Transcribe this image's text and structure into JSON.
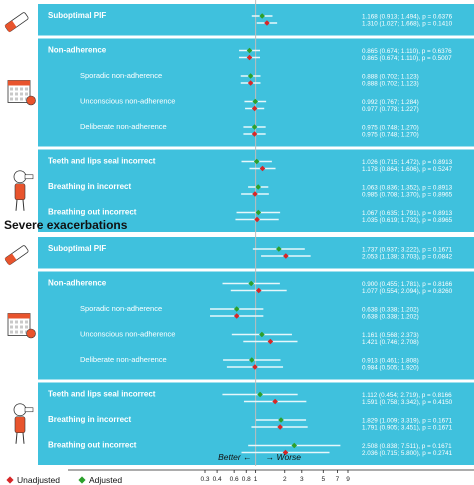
{
  "chart_data": {
    "type": "forest",
    "x_scale": "log",
    "reference_line": 1,
    "xlim": [
      0.3,
      9
    ],
    "x_ticks": [
      {
        "value": 0.3,
        "label": "0.3"
      },
      {
        "value": 0.4,
        "label": "0.4"
      },
      {
        "value": 0.6,
        "label": "0.6"
      },
      {
        "value": 0.8,
        "label": "0.8"
      },
      {
        "value": 1,
        "label": "1"
      },
      {
        "value": 2,
        "label": "2"
      },
      {
        "value": 3,
        "label": "3"
      },
      {
        "value": 5,
        "label": "5"
      },
      {
        "value": 7,
        "label": "7"
      },
      {
        "value": 9,
        "label": "9"
      }
    ],
    "direction_labels": {
      "left": "Better ←",
      "right": "→ Worse"
    },
    "legend": [
      {
        "name": "Unadjusted",
        "color": "#d62728"
      },
      {
        "name": "Adjusted",
        "color": "#2ca02c"
      }
    ],
    "panels": [
      {
        "title": "",
        "groups": [
          {
            "rows": [
              {
                "label": "Suboptimal PIF",
                "bold": true,
                "estimates": [
                  {
                    "series": "Adjusted",
                    "or": 1.168,
                    "low": 0.913,
                    "high": 1.494,
                    "text": "1.168 (0.913; 1.494), p = 0.6376"
                  },
                  {
                    "series": "Unadjusted",
                    "or": 1.31,
                    "low": 1.027,
                    "high": 1.668,
                    "text": "1.310 (1.027; 1.668), p = 0.1410"
                  }
                ]
              }
            ]
          },
          {
            "rows": [
              {
                "label": "Non-adherence",
                "bold": true,
                "estimates": [
                  {
                    "series": "Adjusted",
                    "or": 0.865,
                    "low": 0.674,
                    "high": 1.11,
                    "text": "0.865 (0.674; 1.110), p = 0.6376"
                  },
                  {
                    "series": "Unadjusted",
                    "or": 0.865,
                    "low": 0.674,
                    "high": 1.11,
                    "text": "0.865 (0.674; 1.110), p = 0.5007"
                  }
                ]
              },
              {
                "label": "Sporadic non-adherence",
                "bold": false,
                "estimates": [
                  {
                    "series": "Adjusted",
                    "or": 0.888,
                    "low": 0.702,
                    "high": 1.123,
                    "text": "0.888 (0.702; 1.123)"
                  },
                  {
                    "series": "Unadjusted",
                    "or": 0.888,
                    "low": 0.702,
                    "high": 1.123,
                    "text": "0.888 (0.702; 1.123)"
                  }
                ]
              },
              {
                "label": "Unconscious non-adherence",
                "bold": false,
                "estimates": [
                  {
                    "series": "Adjusted",
                    "or": 0.992,
                    "low": 0.767,
                    "high": 1.284,
                    "text": "0.992 (0.767; 1.284)"
                  },
                  {
                    "series": "Unadjusted",
                    "or": 0.977,
                    "or_hidden": false,
                    "low": 0.778,
                    "high": 1.227,
                    "text": "0.977 (0.778; 1.227)"
                  }
                ]
              },
              {
                "label": "Deliberate non-adherence",
                "bold": false,
                "estimates": [
                  {
                    "series": "Adjusted",
                    "or": 0.975,
                    "low": 0.748,
                    "high": 1.27,
                    "text": "0.975 (0.748; 1.270)"
                  },
                  {
                    "series": "Unadjusted",
                    "or": 0.975,
                    "low": 0.748,
                    "high": 1.27,
                    "text": "0.975 (0.748; 1.270)"
                  }
                ]
              }
            ]
          },
          {
            "rows": [
              {
                "label": "Teeth and lips seal incorrect",
                "bold": true,
                "estimates": [
                  {
                    "series": "Adjusted",
                    "or": 1.026,
                    "low": 0.715,
                    "high": 1.472,
                    "text": "1.026 (0.715; 1.472), p = 0.8913"
                  },
                  {
                    "series": "Unadjusted",
                    "or": 1.178,
                    "low": 0.864,
                    "high": 1.606,
                    "text": "1.178 (0.864; 1.606), p = 0.5247"
                  }
                ]
              },
              {
                "label": "Breathing in incorrect",
                "bold": true,
                "estimates": [
                  {
                    "series": "Adjusted",
                    "or": 1.063,
                    "low": 0.836,
                    "high": 1.352,
                    "text": "1.063 (0.836; 1.352), p = 0.8913"
                  },
                  {
                    "series": "Unadjusted",
                    "or": 0.985,
                    "low": 0.708,
                    "high": 1.37,
                    "text": "0.985 (0.708; 1.370), p = 0.8965"
                  }
                ]
              },
              {
                "label": "Breathing out incorrect",
                "bold": true,
                "estimates": [
                  {
                    "series": "Adjusted",
                    "or": 1.067,
                    "low": 0.635,
                    "high": 1.791,
                    "text": "1.067 (0.635; 1.791), p = 0.8913"
                  },
                  {
                    "series": "Unadjusted",
                    "or": 1.035,
                    "low": 0.619,
                    "high": 1.732,
                    "text": "1.035 (0.619; 1.732), p = 0.8965"
                  }
                ]
              }
            ]
          }
        ]
      },
      {
        "title": "Severe exacerbations",
        "groups": [
          {
            "rows": [
              {
                "label": "Suboptimal PIF",
                "bold": true,
                "estimates": [
                  {
                    "series": "Adjusted",
                    "or": 1.737,
                    "low": 0.937,
                    "high": 3.222,
                    "text": "1.737 (0.937; 3.222), p = 0.1671"
                  },
                  {
                    "series": "Unadjusted",
                    "or": 2.053,
                    "low": 1.138,
                    "high": 3.703,
                    "text": "2.053 (1.138; 3.703), p = 0.0842"
                  }
                ]
              }
            ]
          },
          {
            "rows": [
              {
                "label": "Non-adherence",
                "bold": true,
                "estimates": [
                  {
                    "series": "Adjusted",
                    "or": 0.9,
                    "low": 0.455,
                    "high": 1.781,
                    "text": "0.900 (0.455; 1.781), p = 0.8166"
                  },
                  {
                    "series": "Unadjusted",
                    "or": 1.077,
                    "low": 0.554,
                    "high": 2.094,
                    "text": "1.077 (0.554; 2.094), p = 0.8260"
                  }
                ]
              },
              {
                "label": "Sporadic non-adherence",
                "bold": false,
                "estimates": [
                  {
                    "series": "Adjusted",
                    "or": 0.638,
                    "low": 0.338,
                    "high": 1.202,
                    "text": "0.638 (0.338; 1.202)"
                  },
                  {
                    "series": "Unadjusted",
                    "or": 0.638,
                    "low": 0.338,
                    "high": 1.202,
                    "text": "0.638 (0.338; 1.202)"
                  }
                ]
              },
              {
                "label": "Unconscious non-adherence",
                "bold": false,
                "estimates": [
                  {
                    "series": "Adjusted",
                    "or": 1.161,
                    "low": 0.568,
                    "high": 2.373,
                    "text": "1.161 (0.568; 2.373)"
                  },
                  {
                    "series": "Unadjusted",
                    "or": 1.421,
                    "low": 0.746,
                    "high": 2.708,
                    "text": "1.421 (0.746; 2.708)"
                  }
                ]
              },
              {
                "label": "Deliberate non-adherence",
                "bold": false,
                "estimates": [
                  {
                    "series": "Adjusted",
                    "or": 0.913,
                    "low": 0.461,
                    "high": 1.808,
                    "text": "0.913 (0.461; 1.808)"
                  },
                  {
                    "series": "Unadjusted",
                    "or": 0.984,
                    "low": 0.505,
                    "high": 1.92,
                    "text": "0.984 (0.505; 1.920)"
                  }
                ]
              }
            ]
          },
          {
            "rows": [
              {
                "label": "Teeth and lips seal incorrect",
                "bold": true,
                "estimates": [
                  {
                    "series": "Adjusted",
                    "or": 1.112,
                    "low": 0.454,
                    "high": 2.719,
                    "text": "1.112 (0.454; 2.719), p = 0.8166"
                  },
                  {
                    "series": "Unadjusted",
                    "or": 1.591,
                    "low": 0.758,
                    "high": 3.342,
                    "text": "1.591 (0.758; 3.342), p = 0.4150"
                  }
                ]
              },
              {
                "label": "Breathing in incorrect",
                "bold": true,
                "estimates": [
                  {
                    "series": "Adjusted",
                    "or": 1.829,
                    "low": 1.009,
                    "high": 3.319,
                    "text": "1.829 (1.009; 3.319), p = 0.1671"
                  },
                  {
                    "series": "Unadjusted",
                    "or": 1.791,
                    "low": 0.905,
                    "high": 3.451,
                    "text": "1.791 (0.905; 3.451), p = 0.1671"
                  }
                ]
              },
              {
                "label": "Breathing out incorrect",
                "bold": true,
                "estimates": [
                  {
                    "series": "Adjusted",
                    "or": 2.508,
                    "low": 0.838,
                    "high": 7.511,
                    "text": "2.508 (0.838; 7.511), p = 0.1671"
                  },
                  {
                    "series": "Unadjusted",
                    "or": 2.036,
                    "low": 0.715,
                    "high": 5.8,
                    "text": "2.036 (0.715; 5.800), p = 0.2741"
                  }
                ]
              }
            ]
          }
        ]
      }
    ],
    "icons": [
      "inhaler-icon",
      "calendar-pills-icon",
      "patient-inhaler-icon",
      "inhaler-icon",
      "calendar-pills-icon",
      "patient-inhaler-icon"
    ]
  }
}
